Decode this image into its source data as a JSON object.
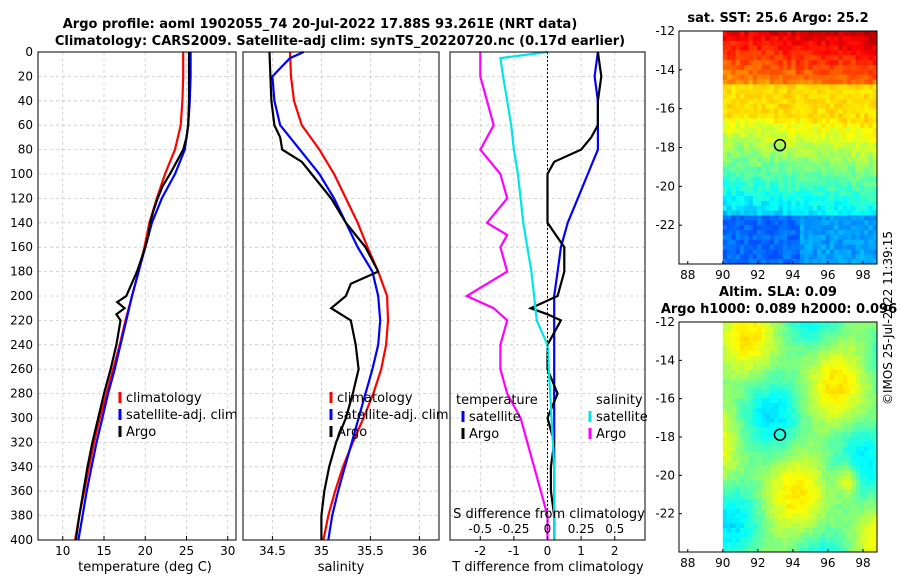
{
  "title": {
    "line1": "Argo profile: aoml 1902055_74 20-Jul-2022 17.88S 93.261E (NRT data)",
    "line2": "Climatology: CARS2009. Satellite-adj clim: synTS_20220720.nc (0.17d earlier)"
  },
  "timestamp": "©IMOS 25-Jul-2022 11:39:15",
  "colors": {
    "climatology": "#ff0000",
    "satellite": "#0000ff",
    "argo": "#000000",
    "salinity_sat": "#00e5e5",
    "salinity_argo": "#ff00ff"
  },
  "chart_data": [
    {
      "type": "line",
      "id": "temperature",
      "xlabel": "temperature (deg C)",
      "ylabel": "",
      "xlim": [
        7,
        31
      ],
      "ylim": [
        400,
        0
      ],
      "xticks": [
        "10",
        "15",
        "20",
        "25",
        "30"
      ],
      "yticks": [
        "0",
        "20",
        "40",
        "60",
        "80",
        "100",
        "120",
        "140",
        "160",
        "180",
        "200",
        "220",
        "240",
        "260",
        "280",
        "300",
        "320",
        "340",
        "360",
        "380",
        "400"
      ],
      "legend": [
        "climatology",
        "satellite-adj. clim",
        "Argo"
      ],
      "series": [
        {
          "name": "climatology",
          "depth": [
            0,
            20,
            40,
            60,
            80,
            100,
            120,
            140,
            160,
            180,
            200,
            220,
            240,
            260,
            280,
            300,
            320,
            340,
            360,
            380,
            400
          ],
          "values": [
            24.6,
            24.6,
            24.5,
            24.3,
            23.6,
            22.4,
            21.4,
            20.5,
            19.9,
            19.2,
            18.4,
            17.6,
            16.9,
            16.1,
            15.3,
            14.5,
            13.8,
            13.2,
            12.6,
            12.0,
            11.5
          ]
        },
        {
          "name": "satellite-adj. clim",
          "depth": [
            0,
            20,
            40,
            60,
            80,
            100,
            120,
            140,
            160,
            180,
            200,
            220,
            240,
            260,
            280,
            300,
            320,
            340,
            360,
            380,
            400
          ],
          "values": [
            25.5,
            25.5,
            25.4,
            25.2,
            24.8,
            23.6,
            22.0,
            20.8,
            20.0,
            19.2,
            18.4,
            17.7,
            17.0,
            16.3,
            15.5,
            14.8,
            14.1,
            13.5,
            12.9,
            12.4,
            11.9
          ]
        },
        {
          "name": "Argo",
          "depth": [
            0,
            20,
            40,
            60,
            70,
            80,
            90,
            100,
            110,
            120,
            130,
            140,
            150,
            160,
            180,
            200,
            205,
            210,
            215,
            220,
            240,
            260,
            280,
            300,
            320,
            340,
            360,
            380,
            400
          ],
          "values": [
            25.3,
            25.3,
            25.3,
            25.2,
            25.0,
            24.6,
            23.8,
            23.0,
            22.1,
            21.5,
            21.0,
            20.6,
            20.4,
            20.0,
            19.0,
            17.7,
            16.6,
            17.5,
            16.5,
            17.0,
            16.5,
            15.8,
            15.0,
            14.3,
            13.6,
            13.0,
            12.5,
            12.0,
            11.6
          ]
        }
      ]
    },
    {
      "type": "line",
      "id": "salinity",
      "xlabel": "salinity",
      "xlim": [
        34.2,
        36.2
      ],
      "ylim": [
        400,
        0
      ],
      "xticks": [
        "34.5",
        "35",
        "35.5",
        "36"
      ],
      "legend": [
        "climatology",
        "satellite-adj. clim",
        "Argo"
      ],
      "series": [
        {
          "name": "climatology",
          "depth": [
            0,
            20,
            40,
            60,
            80,
            100,
            120,
            140,
            160,
            180,
            200,
            220,
            240,
            260,
            280,
            300,
            320,
            340,
            360,
            380,
            400
          ],
          "values": [
            34.68,
            34.69,
            34.72,
            34.8,
            34.98,
            35.13,
            35.25,
            35.37,
            35.47,
            35.58,
            35.67,
            35.68,
            35.66,
            35.61,
            35.53,
            35.43,
            35.32,
            35.22,
            35.14,
            35.07,
            35.02
          ]
        },
        {
          "name": "satellite-adj. clim",
          "depth": [
            0,
            5,
            20,
            40,
            60,
            80,
            100,
            120,
            140,
            160,
            180,
            200,
            220,
            240,
            260,
            280,
            300,
            320,
            340,
            360,
            380,
            400
          ],
          "values": [
            34.82,
            34.68,
            34.5,
            34.52,
            34.58,
            34.78,
            34.98,
            35.13,
            35.25,
            35.37,
            35.52,
            35.58,
            35.6,
            35.58,
            35.52,
            35.45,
            35.38,
            35.31,
            35.24,
            35.17,
            35.11,
            35.07
          ]
        },
        {
          "name": "Argo",
          "depth": [
            0,
            20,
            40,
            60,
            70,
            80,
            90,
            100,
            120,
            140,
            150,
            160,
            180,
            190,
            200,
            210,
            220,
            240,
            260,
            280,
            300,
            320,
            340,
            360,
            380,
            400
          ],
          "values": [
            34.47,
            34.48,
            34.49,
            34.52,
            34.58,
            34.6,
            34.8,
            34.9,
            35.1,
            35.25,
            35.35,
            35.45,
            35.58,
            35.3,
            35.25,
            35.1,
            35.3,
            35.35,
            35.38,
            35.32,
            35.25,
            35.15,
            35.08,
            35.03,
            35.0,
            35.0
          ]
        }
      ]
    },
    {
      "type": "line",
      "id": "difference",
      "xlabel": "T difference from climatology",
      "xlabel_top": "S difference from climatology",
      "xlim": [
        -2.9,
        2.9
      ],
      "ylim": [
        400,
        0
      ],
      "xticks": [
        "-2",
        "-1",
        "0",
        "1",
        "2"
      ],
      "xticks_top": [
        "-0.5",
        "-0.25",
        "0",
        "0.25",
        "0.5"
      ],
      "legend_left_title": "temperature",
      "legend_right_title": "salinity",
      "legend": [
        "satellite",
        "Argo"
      ],
      "series": [
        {
          "name": "T satellite",
          "depth": [
            0,
            20,
            40,
            60,
            80,
            100,
            120,
            140,
            160,
            180,
            200,
            220,
            240,
            260,
            280,
            300,
            320,
            340,
            360,
            380,
            400
          ],
          "values": [
            1.5,
            1.4,
            1.5,
            1.5,
            1.5,
            1.2,
            0.9,
            0.6,
            0.4,
            0.3,
            0.2,
            0.2,
            0.2,
            0.2,
            0.2,
            0.2,
            0.2,
            0.2,
            0.2,
            0.2,
            0.2
          ]
        },
        {
          "name": "T Argo",
          "depth": [
            0,
            20,
            40,
            60,
            70,
            80,
            90,
            100,
            120,
            140,
            160,
            180,
            200,
            210,
            215,
            220,
            240,
            260,
            280,
            300,
            320,
            340,
            360,
            380,
            400
          ],
          "values": [
            1.5,
            1.6,
            1.5,
            1.5,
            1.3,
            1.0,
            0.2,
            0.0,
            0.0,
            0.0,
            0.5,
            0.5,
            0.3,
            -0.5,
            0.0,
            0.4,
            0.0,
            0.0,
            0.3,
            0.0,
            0.2,
            0.1,
            0.1,
            0.2,
            0.2
          ]
        },
        {
          "name": "S satellite",
          "depth": [
            0,
            5,
            20,
            40,
            60,
            80,
            100,
            120,
            140,
            160,
            180,
            200,
            220,
            240,
            260,
            280,
            300,
            320,
            340,
            360,
            380,
            400
          ],
          "values": [
            0.0,
            -0.35,
            -0.33,
            -0.3,
            -0.27,
            -0.25,
            -0.22,
            -0.2,
            -0.18,
            -0.15,
            -0.12,
            -0.1,
            -0.08,
            0.0,
            0.01,
            0.02,
            0.03,
            0.04,
            0.05,
            0.05,
            0.05,
            0.05
          ]
        },
        {
          "name": "S Argo",
          "depth": [
            0,
            20,
            40,
            60,
            80,
            100,
            120,
            140,
            150,
            160,
            180,
            200,
            210,
            220,
            240,
            260,
            280,
            300,
            320,
            340,
            360,
            380,
            400
          ],
          "values": [
            -0.5,
            -0.5,
            -0.45,
            -0.4,
            -0.5,
            -0.35,
            -0.3,
            -0.45,
            -0.3,
            -0.35,
            -0.3,
            -0.6,
            -0.4,
            -0.3,
            -0.35,
            -0.35,
            -0.3,
            -0.2,
            -0.15,
            -0.1,
            -0.05,
            0.0,
            0.0
          ]
        }
      ]
    },
    {
      "type": "heatmap",
      "id": "sst_map",
      "title": "sat. SST: 25.6 Argo: 25.2",
      "xlim": [
        87.5,
        98.8
      ],
      "ylim": [
        -24,
        -12
      ],
      "xticks": [
        "88",
        "90",
        "92",
        "94",
        "96",
        "98"
      ],
      "yticks": [
        "-12",
        "-14",
        "-16",
        "-18",
        "-20",
        "-22"
      ],
      "argo_lon": 93.261,
      "argo_lat": -17.88
    },
    {
      "type": "heatmap",
      "id": "sla_map",
      "title": "Altim. SLA: 0.09",
      "title2": "Argo h1000: 0.089 h2000: 0.096",
      "xlim": [
        87.5,
        98.8
      ],
      "ylim": [
        -24,
        -12
      ],
      "xticks": [
        "88",
        "90",
        "92",
        "94",
        "96",
        "98"
      ],
      "yticks": [
        "-12",
        "-14",
        "-16",
        "-18",
        "-20",
        "-22"
      ],
      "argo_lon": 93.261,
      "argo_lat": -17.88
    }
  ]
}
